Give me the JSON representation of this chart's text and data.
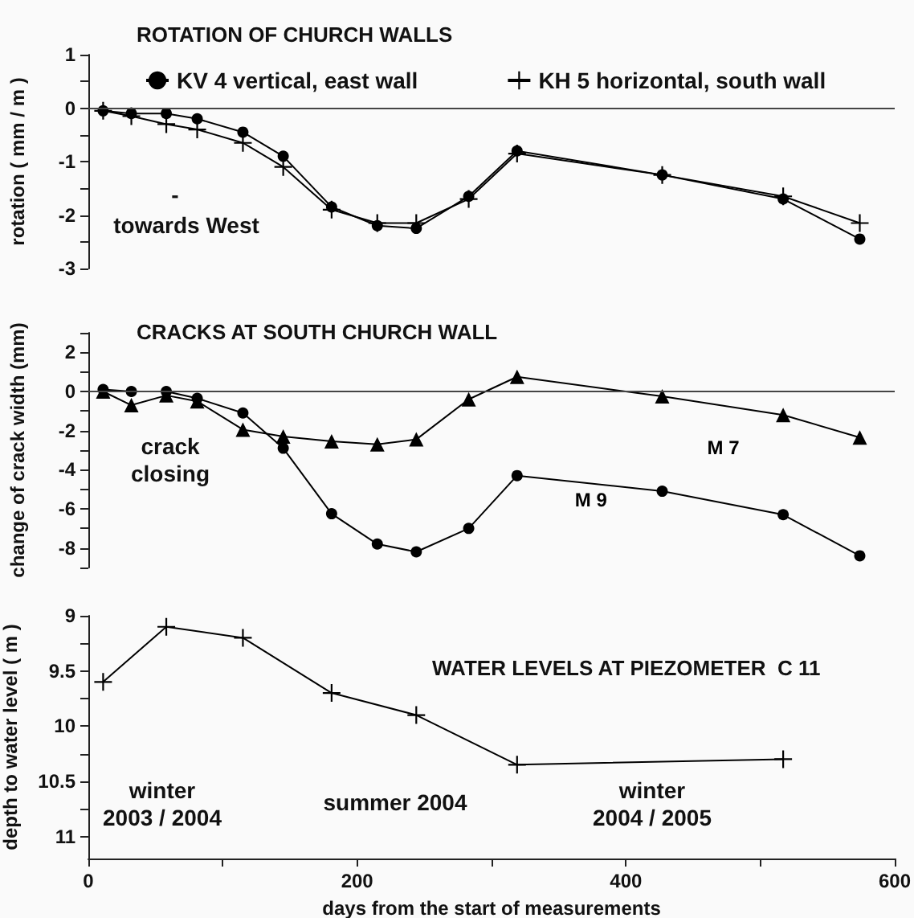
{
  "chart_data": [
    {
      "type": "line",
      "title": "ROTATION OF CHURCH WALLS",
      "ylabel": "rotation ( mm / m )",
      "xlim": [
        0,
        600
      ],
      "ylim": [
        -3,
        1
      ],
      "yticks": [
        -3,
        {
          "value": -2.5,
          "label": null
        },
        -2,
        {
          "value": -1.5,
          "label": null
        },
        -1,
        {
          "value": -0.5,
          "label": null
        },
        0,
        {
          "value": 0.5,
          "label": null
        },
        1
      ],
      "tick_labels": "y",
      "legend": "top",
      "ref_lines": [
        {
          "axis": "y",
          "value": 0
        }
      ],
      "annotations": [
        "-",
        "towards West"
      ],
      "series": [
        {
          "name": "KV 4 vertical, east wall",
          "color": "#000000",
          "marker": "circle",
          "x": [
            11,
            32,
            58,
            81,
            115,
            145,
            181,
            215,
            244,
            283,
            319,
            427,
            517,
            574
          ],
          "values": [
            -0.05,
            -0.1,
            -0.1,
            -0.2,
            -0.45,
            -0.9,
            -1.85,
            -2.2,
            -2.25,
            -1.65,
            -0.8,
            -1.25,
            -1.7,
            -2.45
          ]
        },
        {
          "name": "KH 5 horizontal, south wall",
          "color": "#000000",
          "marker": "cross",
          "x": [
            11,
            32,
            58,
            81,
            115,
            145,
            181,
            215,
            244,
            283,
            319,
            427,
            517,
            574
          ],
          "values": [
            -0.05,
            -0.15,
            -0.3,
            -0.4,
            -0.65,
            -1.1,
            -1.9,
            -2.15,
            -2.15,
            -1.7,
            -0.85,
            -1.25,
            -1.65,
            -2.15
          ]
        }
      ]
    },
    {
      "type": "line",
      "title": "CRACKS AT SOUTH CHURCH WALL",
      "ylabel": "change of crack width (mm)",
      "xlim": [
        0,
        600
      ],
      "ylim": [
        -9,
        3
      ],
      "yticks": [
        {
          "value": -9,
          "label": null
        },
        -8,
        {
          "value": -7,
          "label": null
        },
        -6,
        {
          "value": -5,
          "label": null
        },
        -4,
        {
          "value": -3,
          "label": null
        },
        -2,
        {
          "value": -1,
          "label": null
        },
        0,
        {
          "value": 1,
          "label": null
        },
        2,
        {
          "value": 3,
          "label": null
        }
      ],
      "tick_labels": "y",
      "ref_lines": [
        {
          "axis": "y",
          "value": 0
        }
      ],
      "annotations": [
        "crack\nclosing"
      ],
      "series": [
        {
          "name": "M 7",
          "color": "#000000",
          "marker": "triangle",
          "x": [
            11,
            32,
            58,
            81,
            115,
            145,
            181,
            215,
            244,
            283,
            319,
            427,
            517,
            574
          ],
          "values": [
            0,
            -0.7,
            -0.2,
            -0.5,
            -1.95,
            -2.3,
            -2.55,
            -2.7,
            -2.45,
            -0.4,
            0.75,
            -0.25,
            -1.2,
            -2.35
          ]
        },
        {
          "name": "M 9",
          "color": "#000000",
          "marker": "circle",
          "x": [
            11,
            32,
            58,
            81,
            115,
            145,
            181,
            215,
            244,
            283,
            319,
            427,
            517,
            574
          ],
          "values": [
            0.1,
            0,
            0,
            -0.35,
            -1.1,
            -2.9,
            -6.25,
            -7.8,
            -8.2,
            -7,
            -4.3,
            -5.1,
            -6.3,
            -8.4
          ]
        }
      ]
    },
    {
      "type": "line",
      "title": "WATER LEVELS AT PIEZOMETER  C 11",
      "xlabel": "days from the start of measurements",
      "ylabel": "depth to water level ( m )",
      "xlim": [
        0,
        600
      ],
      "xticks": [
        0,
        {
          "value": 100,
          "label": null
        },
        200,
        {
          "value": 300,
          "label": null
        },
        400,
        {
          "value": 500,
          "label": null
        },
        600
      ],
      "ylim": [
        11.2,
        9
      ],
      "yticks": [
        9,
        {
          "value": 9.25,
          "label": null
        },
        9.5,
        {
          "value": 9.75,
          "label": null
        },
        10,
        {
          "value": 10.25,
          "label": null
        },
        10.5,
        {
          "value": 10.75,
          "label": null
        },
        11
      ],
      "annotations": [
        "winter\n2003 / 2004",
        "summer 2004",
        "winter\n2004 / 2005"
      ],
      "series": [
        {
          "color": "#000000",
          "marker": "cross",
          "x": [
            11,
            58,
            115,
            181,
            244,
            319,
            517
          ],
          "values": [
            9.6,
            9.1,
            9.2,
            9.7,
            9.9,
            10.35,
            10.3
          ]
        }
      ]
    }
  ]
}
